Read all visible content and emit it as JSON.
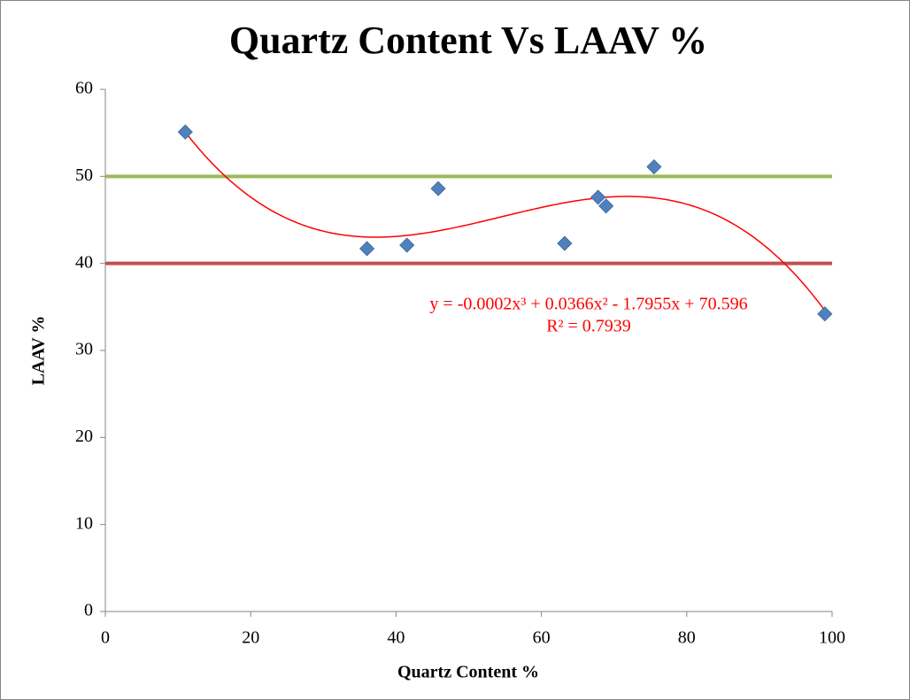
{
  "chart_data": {
    "type": "scatter",
    "title": "Quartz Content Vs LAAV %",
    "x_label": "Quartz Content %",
    "y_label": "LAAV %",
    "series": [
      {
        "name": "LAAV",
        "color": "#4f81bd",
        "x": [
          11,
          36,
          41.5,
          45.8,
          63.2,
          67.8,
          68.9,
          75.5,
          99
        ],
        "values": [
          55.1,
          41.7,
          42.1,
          48.6,
          42.3,
          47.6,
          46.6,
          51.1,
          34.2
        ]
      }
    ],
    "trendline": {
      "type": "polynomial",
      "color": "#ff0000",
      "equation": "y = -0.0002x³ + 0.0366x² - 1.7955x + 70.596",
      "r_squared": "R² = 0.7939"
    },
    "reference_lines": [
      {
        "value": 50,
        "color": "#9bbb59"
      },
      {
        "value": 40,
        "color": "#c0504d"
      }
    ],
    "xlim": [
      0,
      100
    ],
    "xticks": [
      0,
      20,
      40,
      60,
      80,
      100
    ],
    "ylim": [
      0,
      60
    ],
    "yticks": [
      0,
      10,
      20,
      30,
      40,
      50,
      60
    ]
  }
}
